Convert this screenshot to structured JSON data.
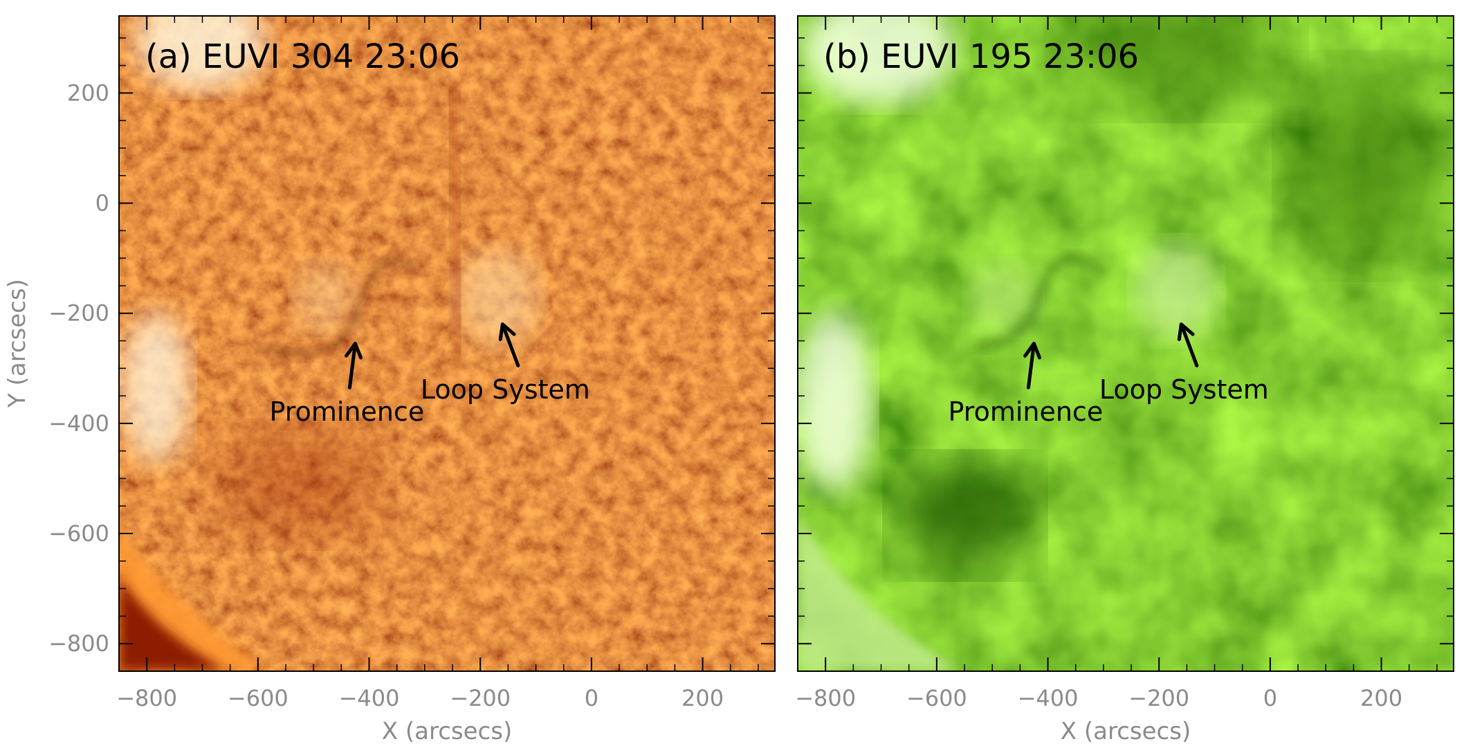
{
  "figure": {
    "panels": [
      {
        "id": "a",
        "title": "(a) EUVI 304 23:06",
        "theme": "red",
        "colors": {
          "base": "#c8410a",
          "dark": "#8e1d02",
          "bright": "#ff8a2a",
          "white": "#fff3d8"
        },
        "annotations": [
          {
            "text": "Prominence",
            "arrow_to": [
              -425,
              -255
            ],
            "arrow_from": [
              -435,
              -335
            ],
            "text_pos": [
              -440,
              -395
            ]
          },
          {
            "text": "Loop System",
            "arrow_to": [
              -160,
              -220
            ],
            "arrow_from": [
              -132,
              -295
            ],
            "text_pos": [
              -155,
              -355
            ]
          }
        ]
      },
      {
        "id": "b",
        "title": "(b) EUVI 195 23:06",
        "theme": "green",
        "colors": {
          "base": "#4e9a06",
          "dark": "#2f6b00",
          "bright": "#a6d84a",
          "white": "#f3ffe0"
        },
        "annotations": [
          {
            "text": "Prominence",
            "arrow_to": [
              -425,
              -255
            ],
            "arrow_from": [
              -435,
              -335
            ],
            "text_pos": [
              -440,
              -395
            ]
          },
          {
            "text": "Loop System",
            "arrow_to": [
              -160,
              -220
            ],
            "arrow_from": [
              -132,
              -295
            ],
            "text_pos": [
              -155,
              -355
            ]
          }
        ]
      }
    ],
    "x_axis": {
      "label": "X (arcsecs)",
      "range": [
        -850,
        330
      ],
      "ticks": [
        -800,
        -600,
        -400,
        -200,
        0,
        200
      ],
      "tick_labels": [
        "−800",
        "−600",
        "−400",
        "−200",
        "0",
        "200"
      ]
    },
    "y_axis": {
      "label": "Y (arcsecs)",
      "range": [
        -850,
        340
      ],
      "ticks": [
        200,
        0,
        -200,
        -400,
        -600,
        -800
      ],
      "tick_labels": [
        "200",
        "0",
        "−200",
        "−400",
        "−600",
        "−800"
      ]
    }
  }
}
